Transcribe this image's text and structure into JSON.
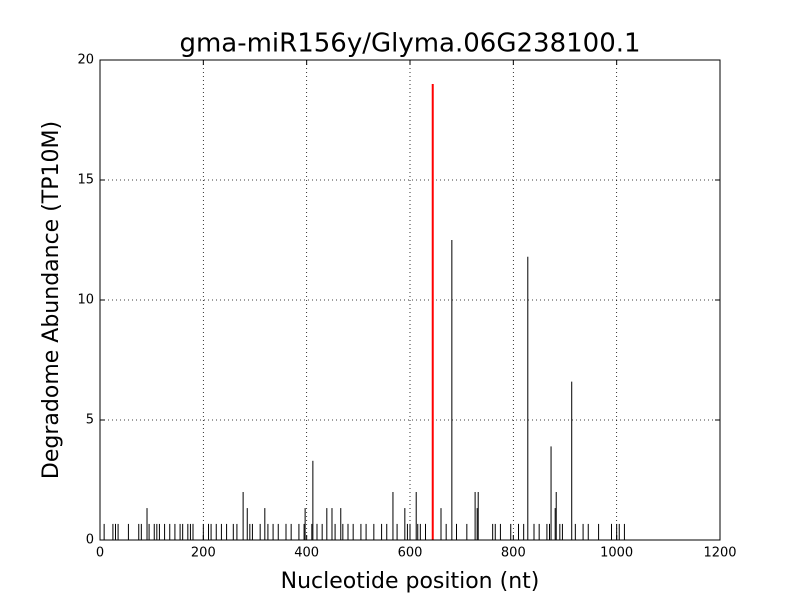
{
  "chart_data": {
    "type": "stem",
    "title": "gma-miR156y/Glyma.06G238100.1",
    "xlabel": "Nucleotide position (nt)",
    "ylabel": "Degradome Abundance (TP10M)",
    "xlim": [
      0,
      1200
    ],
    "xticks": [
      0,
      200,
      400,
      600,
      800,
      1000,
      1200
    ],
    "ylim": [
      0,
      20
    ],
    "yticks": [
      0,
      5,
      10,
      15,
      20
    ],
    "grid": true,
    "series": [
      {
        "color": "#000000",
        "x": [
          8,
          25,
          30,
          35,
          55,
          75,
          80,
          91,
          95,
          105,
          110,
          115,
          125,
          135,
          145,
          155,
          160,
          170,
          175,
          180,
          200,
          210,
          215,
          225,
          235,
          245,
          258,
          265,
          277,
          285,
          290,
          295,
          310,
          319,
          325,
          335,
          345,
          360,
          370,
          385,
          395,
          397,
          410,
          412,
          420,
          430,
          439,
          449,
          455,
          466,
          470,
          480,
          490,
          505,
          515,
          530,
          545,
          555,
          567,
          575,
          590,
          595,
          600,
          612,
          615,
          620,
          630,
          660,
          670,
          681,
          690,
          710,
          726,
          730,
          732,
          760,
          765,
          775,
          795,
          810,
          820,
          828,
          840,
          850,
          865,
          870,
          873,
          881,
          883,
          890,
          895,
          913,
          920,
          935,
          945,
          965,
          990,
          1000,
          1005,
          1015
        ],
        "values": [
          0.67,
          0.67,
          0.67,
          0.67,
          0.67,
          0.67,
          0.67,
          1.33,
          0.67,
          0.67,
          0.67,
          0.67,
          0.67,
          0.67,
          0.67,
          0.67,
          0.67,
          0.67,
          0.67,
          0.67,
          0.67,
          0.67,
          0.67,
          0.67,
          0.67,
          0.67,
          0.67,
          0.67,
          2,
          1.33,
          0.67,
          0.67,
          0.67,
          1.33,
          0.67,
          0.67,
          0.67,
          0.67,
          0.67,
          0.67,
          0.67,
          1.33,
          0.67,
          3.3,
          0.67,
          0.67,
          1.33,
          1.33,
          0.67,
          1.33,
          0.67,
          0.67,
          0.67,
          0.67,
          0.67,
          0.67,
          0.67,
          0.67,
          2,
          0.67,
          1.33,
          0.67,
          0.67,
          2,
          0.67,
          0.67,
          0.67,
          1.33,
          0.67,
          12.5,
          0.67,
          0.67,
          2,
          1.33,
          2,
          0.67,
          0.67,
          0.67,
          0.67,
          0.67,
          0.67,
          11.8,
          0.67,
          0.67,
          0.67,
          0.67,
          3.9,
          1.33,
          2,
          0.67,
          0.67,
          6.6,
          0.67,
          0.67,
          0.67,
          0.67,
          0.67,
          0.67,
          0.67,
          0.67
        ]
      },
      {
        "color": "#ff0000",
        "x": [
          644
        ],
        "values": [
          19
        ]
      }
    ]
  }
}
